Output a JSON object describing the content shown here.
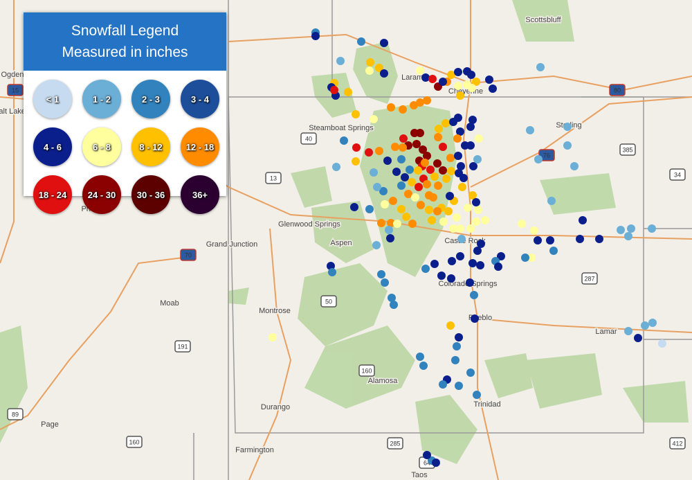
{
  "legend": {
    "title": "Snowfall Legend",
    "subtitle": "Measured in inches",
    "items": [
      {
        "label": "< 1",
        "color": "#c6dbef"
      },
      {
        "label": "1 - 2",
        "color": "#6baed6"
      },
      {
        "label": "2 - 3",
        "color": "#3182bd"
      },
      {
        "label": "3 - 4",
        "color": "#1c4e9a"
      },
      {
        "label": "4 - 6",
        "color": "#0b1f8c"
      },
      {
        "label": "6 - 8",
        "color": "#ffff9e"
      },
      {
        "label": "8 - 12",
        "color": "#ffc000"
      },
      {
        "label": "12 - 18",
        "color": "#ff8c00"
      },
      {
        "label": "18 - 24",
        "color": "#e01010"
      },
      {
        "label": "24 - 30",
        "color": "#8b0000"
      },
      {
        "label": "30 - 36",
        "color": "#5c0000"
      },
      {
        "label": "36+",
        "color": "#2b0030"
      }
    ]
  },
  "map_labels": [
    "Scottsbluff",
    "Sterling",
    "Steamboat Springs",
    "Glenwood Springs",
    "Aspen",
    "Grand Junction",
    "Price",
    "Moab",
    "Montrose",
    "Colorado Springs",
    "Pueblo",
    "Lamar",
    "Alamosa",
    "Trinidad",
    "Durango",
    "Page",
    "Farmington",
    "Taos",
    "Castle Rock",
    "Cheyenne",
    "Laramie",
    "Ogden",
    "Salt Lake"
  ],
  "highway_shields": [
    "15",
    "80",
    "40",
    "385",
    "76",
    "13",
    "34",
    "70",
    "287",
    "50",
    "191",
    "160",
    "89",
    "160",
    "285",
    "412",
    "64"
  ]
}
